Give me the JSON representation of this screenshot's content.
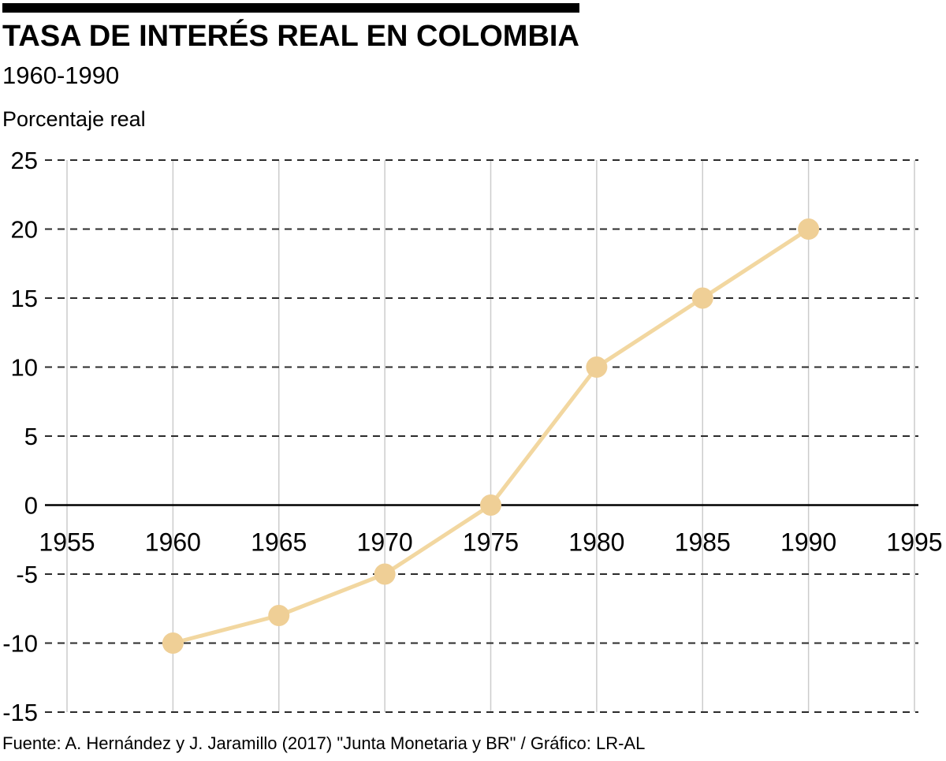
{
  "header": {
    "title": "TASA DE INTERÉS REAL EN COLOMBIA",
    "subtitle": "1960-1990",
    "axis_note": "Porcentaje real"
  },
  "footer": {
    "source": "Fuente: A. Hernández y J. Jaramillo (2017) \"Junta Monetaria y BR\" / Gráfico: LR-AL"
  },
  "chart_data": {
    "type": "line",
    "title": "TASA DE INTERÉS REAL EN COLOMBIA",
    "subtitle": "1960-1990",
    "ylabel": "Porcentaje real",
    "x": [
      1960,
      1965,
      1970,
      1975,
      1980,
      1985,
      1990
    ],
    "values": [
      -10,
      -8,
      -5,
      0,
      10,
      15,
      20
    ],
    "x_ticks": [
      1955,
      1960,
      1965,
      1970,
      1975,
      1980,
      1985,
      1990,
      1995
    ],
    "y_ticks": [
      25,
      20,
      15,
      10,
      5,
      0,
      -5,
      -10,
      -15
    ],
    "xlim": [
      1955,
      1995
    ],
    "ylim": [
      -15,
      25
    ],
    "grid": true,
    "legend": "none",
    "line_color": "#F2D7A0",
    "marker_color": "#EFCF96",
    "grid_color": "#cccccc",
    "dash_color": "#2b2b2b",
    "axis_color": "#000000"
  }
}
